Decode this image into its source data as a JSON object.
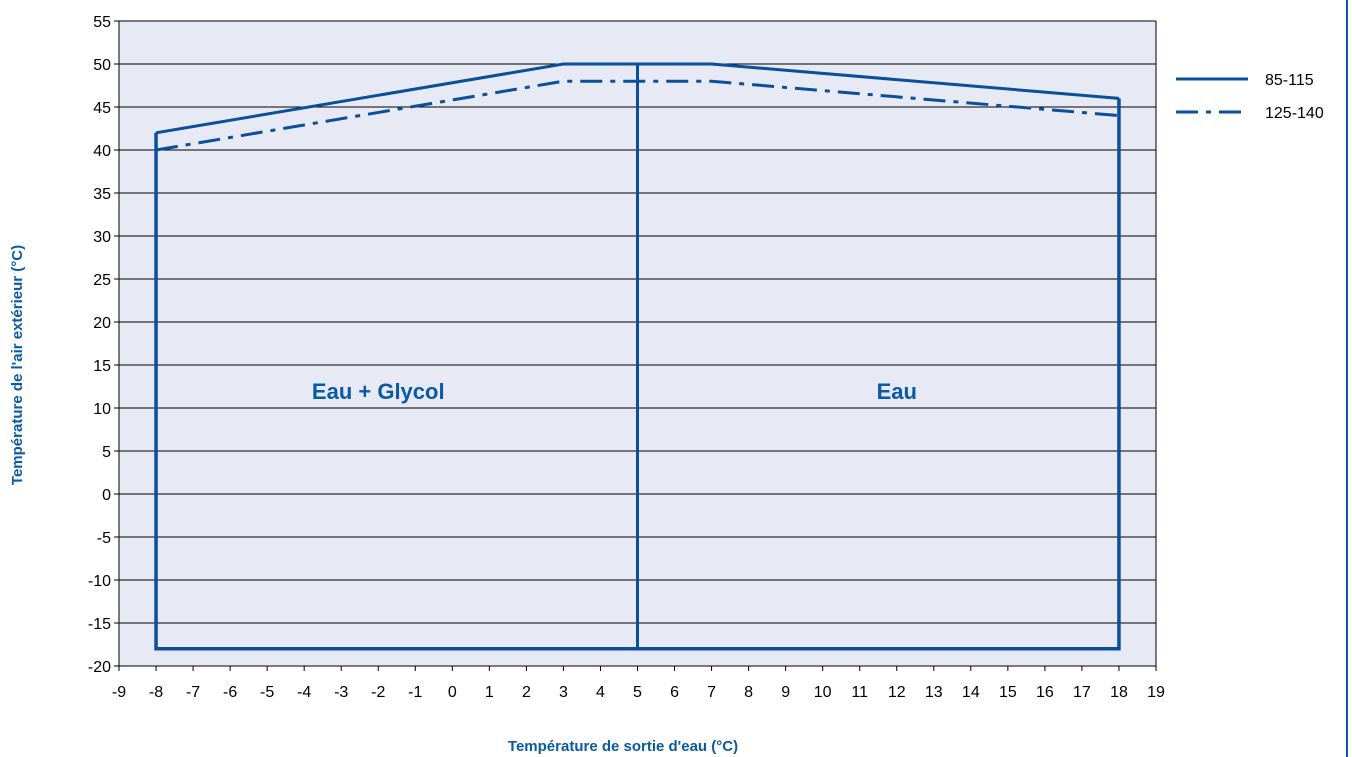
{
  "chart_data": {
    "type": "line",
    "xlabel": "Température de sortie d'eau (°C)",
    "ylabel": "Température de l'air extérieur (°C)",
    "xlim": [
      -9,
      19
    ],
    "ylim": [
      -20,
      55
    ],
    "xticks": [
      -9,
      -8,
      -7,
      -6,
      -5,
      -4,
      -3,
      -2,
      -1,
      0,
      1,
      2,
      3,
      4,
      5,
      6,
      7,
      8,
      9,
      10,
      11,
      12,
      13,
      14,
      15,
      16,
      17,
      18,
      19
    ],
    "yticks": [
      55,
      50,
      45,
      40,
      35,
      30,
      25,
      20,
      15,
      10,
      5,
      0,
      -5,
      -10,
      -15,
      -20
    ],
    "grid": "horizontal",
    "legend_position": "right",
    "series": [
      {
        "name": "85-115",
        "style": "solid",
        "color": "#0a4f9c",
        "x": [
          -8,
          3,
          7,
          18
        ],
        "y": [
          42,
          50,
          50,
          46
        ]
      },
      {
        "name": "125-140",
        "style": "dash-dot",
        "color": "#0a4f9c",
        "x": [
          -8,
          3,
          7,
          18
        ],
        "y": [
          40,
          48,
          48,
          44
        ]
      }
    ],
    "envelope": {
      "x_left": -8,
      "x_divider": 5,
      "x_right": 18,
      "y_bottom": -18,
      "y_top_left": 42,
      "y_top_right": 46,
      "y_divider_top": 50
    },
    "regions": [
      {
        "label": "Eau + Glycol",
        "x": -2,
        "y": 12
      },
      {
        "label": "Eau",
        "x": 12,
        "y": 12
      }
    ],
    "colors": {
      "plot_background": "#e7eaf4",
      "line": "#0a4f9c",
      "label": "#0a5aa6",
      "grid": "#000000"
    }
  }
}
